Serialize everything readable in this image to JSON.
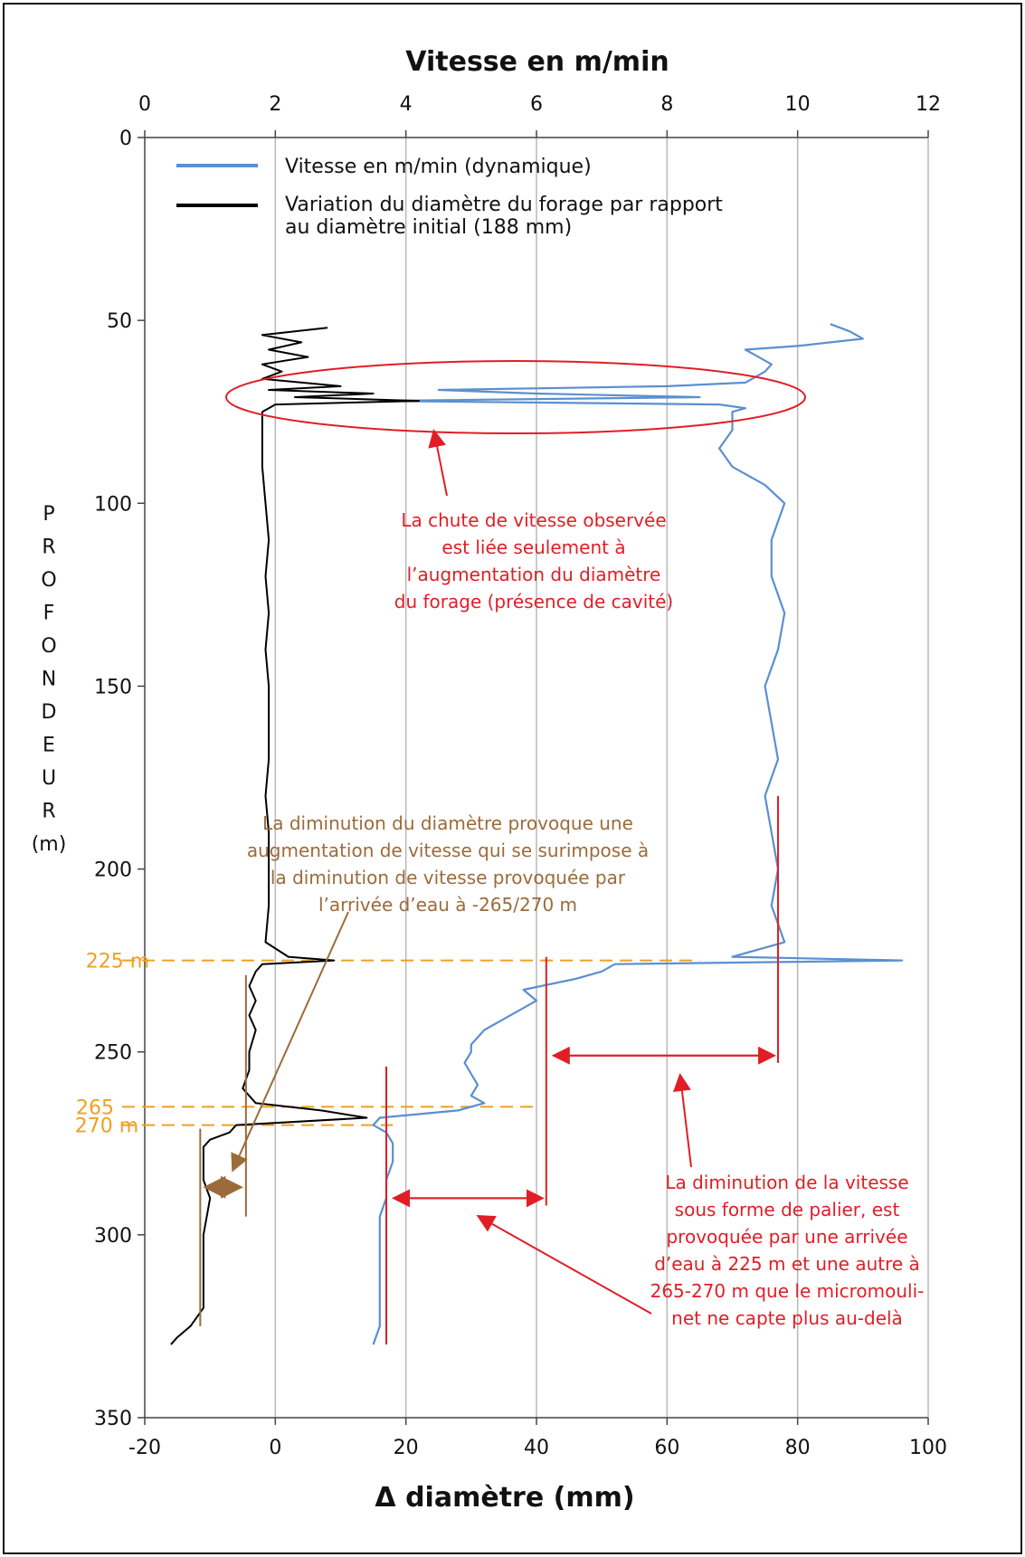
{
  "chart_data": {
    "type": "line",
    "title": "Vitesse en m/min",
    "xlabel_top": "Vitesse en m/min",
    "xlabel_bottom": "Δ diamètre (mm)",
    "ylabel": [
      "P",
      "R",
      "O",
      "F",
      "O",
      "N",
      "D",
      "E",
      "U",
      "R",
      "(m)"
    ],
    "x_top_range": [
      0,
      12
    ],
    "x_top_ticks": [
      "0",
      "2",
      "4",
      "6",
      "8",
      "10",
      "12"
    ],
    "x_bottom_range": [
      -20,
      100
    ],
    "x_bottom_ticks": [
      "-20",
      "0",
      "20",
      "40",
      "60",
      "80",
      "100"
    ],
    "y_range": [
      0,
      350
    ],
    "y_ticks": [
      "0",
      "50",
      "100",
      "150",
      "200",
      "250",
      "300",
      "350"
    ],
    "y_inverted": true,
    "grid": "vertical",
    "legend_position": "top-left",
    "colors": {
      "speed": "#5b8fd0",
      "diameter": "#000000",
      "annotation_red": "#e01e26",
      "annotation_brown": "#9b6b3a",
      "annotation_orange": "#f0a020"
    },
    "series": [
      {
        "name": "Vitesse en m/min (dynamique)",
        "axis": "top",
        "depth_values": [
          51,
          53,
          55,
          57,
          58,
          60,
          62,
          64,
          65,
          67,
          68,
          69,
          70,
          71,
          72,
          73,
          74,
          75,
          77,
          80,
          85,
          90,
          95,
          100,
          110,
          120,
          130,
          140,
          150,
          160,
          170,
          180,
          190,
          200,
          210,
          220,
          224,
          225,
          226,
          228,
          230,
          233,
          236,
          240,
          244,
          248,
          250,
          253,
          256,
          259,
          262,
          264,
          266,
          268,
          270,
          272,
          275,
          280,
          285,
          290,
          295,
          300,
          305,
          310,
          315,
          320,
          325,
          330
        ],
        "speed_values": [
          10.5,
          10.8,
          11.0,
          10.0,
          9.2,
          9.4,
          9.6,
          9.5,
          9.4,
          9.2,
          8.0,
          4.5,
          6.0,
          8.5,
          3.6,
          8.8,
          9.2,
          9.0,
          9.0,
          9.0,
          8.8,
          9.0,
          9.5,
          9.8,
          9.6,
          9.6,
          9.8,
          9.7,
          9.5,
          9.6,
          9.7,
          9.5,
          9.6,
          9.7,
          9.6,
          9.8,
          9.0,
          11.6,
          7.2,
          7.0,
          6.6,
          5.8,
          6.0,
          5.6,
          5.2,
          5.0,
          5.0,
          4.9,
          5.0,
          5.1,
          5.0,
          5.2,
          4.8,
          3.6,
          3.5,
          3.7,
          3.8,
          3.8,
          3.7,
          3.7,
          3.6,
          3.6,
          3.6,
          3.6,
          3.6,
          3.6,
          3.6,
          3.5
        ]
      },
      {
        "name": "Variation du diamètre du forage par rapport au diamètre initial (188 mm)",
        "axis": "bottom",
        "depth_values": [
          52,
          54,
          56,
          58,
          60,
          62,
          64,
          66,
          68,
          69,
          70,
          71,
          72,
          73,
          74,
          75,
          80,
          90,
          100,
          110,
          120,
          130,
          140,
          150,
          160,
          170,
          180,
          190,
          200,
          210,
          220,
          224,
          225,
          226,
          228,
          232,
          236,
          240,
          244,
          250,
          255,
          260,
          264,
          266,
          268,
          270,
          272,
          274,
          276,
          280,
          285,
          290,
          300,
          310,
          320,
          325,
          328,
          330
        ],
        "diameter_values": [
          8.0,
          -2.0,
          4.0,
          -1.0,
          5.0,
          -2.0,
          1.0,
          -2.0,
          10.0,
          -1.0,
          15.0,
          3.0,
          22.0,
          0.0,
          -1.0,
          -2.0,
          -2.0,
          -2.0,
          -1.5,
          -1.0,
          -1.5,
          -1.0,
          -1.5,
          -1.0,
          -1.0,
          -1.0,
          -1.5,
          -1.0,
          -1.0,
          -1.0,
          -1.5,
          2.0,
          9.0,
          -2.0,
          -3.0,
          -4.0,
          -3.0,
          -4.0,
          -3.0,
          -4.0,
          -4.0,
          -5.0,
          -3.0,
          7.0,
          14.0,
          -6.0,
          -7.0,
          -10.0,
          -11.0,
          -11.0,
          -11.0,
          -10.0,
          -11.0,
          -11.0,
          -11.0,
          -13.0,
          -15.0,
          -16.0
        ]
      }
    ]
  },
  "reference_lines": {
    "label_225": "225 m",
    "label_265": "265",
    "label_270": "270 m"
  },
  "annotations": {
    "ellipse_note": [
      "La chute de vitesse observée",
      "est liée seulement à",
      "l’augmentation du diamètre",
      "du forage (présence de cavité)"
    ],
    "brown_note": [
      "La diminution du diamètre provoque une",
      "augmentation de vitesse qui se surimpose à",
      "la diminution de vitesse provoquée par",
      "l’arrivée d’eau à -265/270 m"
    ],
    "bottom_note": [
      "La diminution de la vitesse",
      "sous forme de palier, est",
      "provoquée par une arrivée",
      "d’eau à 225 m et une autre à",
      "265-270 m que le micromouli-",
      "net ne capte plus au-delà"
    ]
  }
}
